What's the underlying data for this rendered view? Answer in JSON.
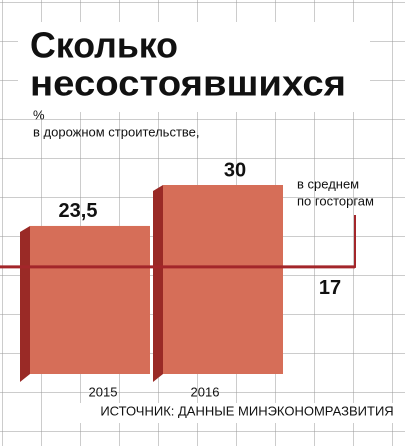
{
  "chart_data": {
    "type": "bar",
    "title": [
      "Сколько",
      "несостоявшихся"
    ],
    "subtitle": [
      "%",
      "в дорожном строительстве,"
    ],
    "categories": [
      "2015",
      "2016"
    ],
    "values": [
      23.5,
      30
    ],
    "value_labels": [
      "23,5",
      "30"
    ],
    "color": "#d66e58",
    "side_color": "#9a2a26",
    "ylim": [
      0,
      40
    ],
    "reference": {
      "value": 17,
      "label": [
        "в среднем",
        "по госторгам"
      ],
      "color": "#a3262a"
    },
    "source": "ИСТОЧНИК: ДАННЫЕ МИНЭКОНОМРАЗВИТИЯ"
  }
}
